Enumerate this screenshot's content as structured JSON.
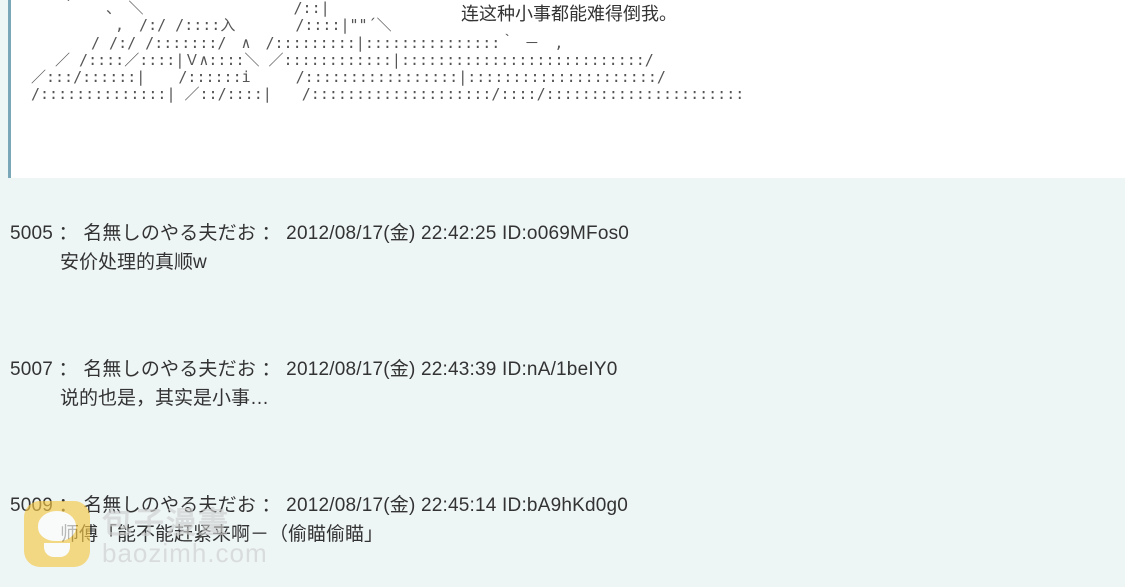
{
  "top_panel": {
    "quote": "连这种小事都能难得倒我。",
    "ascii_art": "　　｀　　、　＼　　　　　　　　　　/::|\n　　　 　　,　/:/ /::::入　　　　/::::|\"\"´＼\n　　　　/ /:/ /:::::::/　∧　/:::::::::|:::::::::::::::｀ －　,\n　 ／ /::::／::::|Ｖ∧::::＼ ／::::::::::::|:::::::::::::::::::::::::::/\n／:::/::::::| 　 /::::::i　　　/:::::::::::::::::|:::::::::::::::::::::/\n/::::::::::::::| ／::/::::|　　/::::::::::::::::::::/::::/::::::::::::::::::::::"
  },
  "posts": [
    {
      "number": "5005",
      "name": "名無しのやる夫だお",
      "date": "2012/08/17(金) 22:42:25",
      "id": "o069MFos0",
      "body": "安价处理的真顺w"
    },
    {
      "number": "5007",
      "name": "名無しのやる夫だお",
      "date": "2012/08/17(金) 22:43:39",
      "id": "nA/1beIY0",
      "body": "说的也是，其实是小事…"
    },
    {
      "number": "5009",
      "name": "名無しのやる夫だお",
      "date": "2012/08/17(金) 22:45:14",
      "id": "bA9hKd0g0",
      "body": "师傅「能不能赶紧来啊－（偷瞄偷瞄」"
    }
  ],
  "watermark": {
    "title": "包子漫畫",
    "domain": "baozimh.com"
  },
  "colors": {
    "page_bg": "#eef5f5",
    "panel_bg": "#ffffff",
    "panel_border": "#7ba8b8",
    "text": "#333333",
    "watermark_icon": "#f7c948",
    "watermark_text": "#cfcfcf"
  }
}
